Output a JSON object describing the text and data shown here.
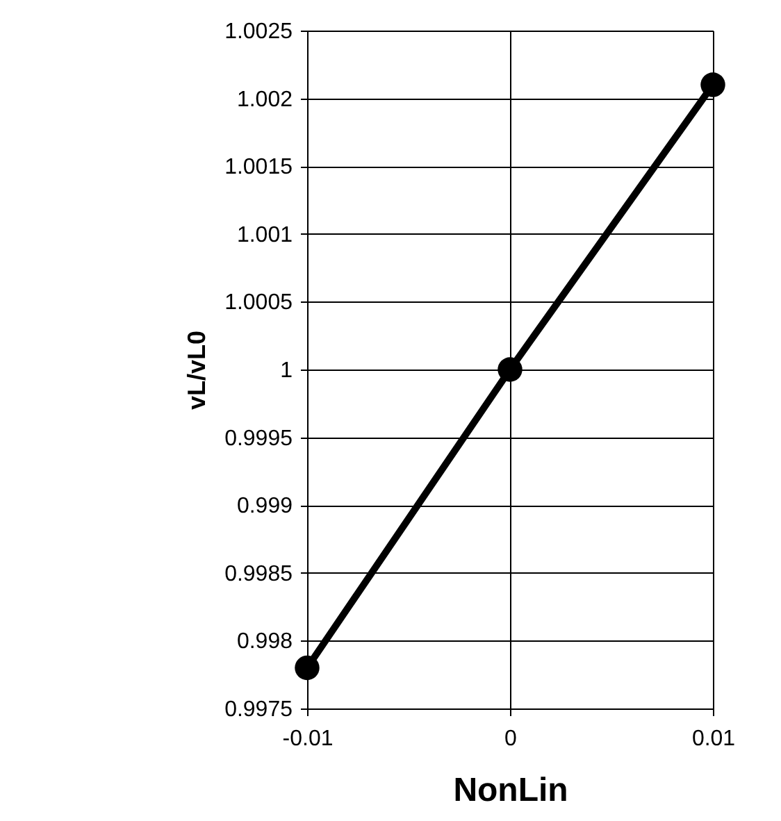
{
  "chart_data": {
    "type": "line",
    "xlabel": "NonLin",
    "ylabel": "vL/vL0",
    "x": [
      -0.01,
      0,
      0.01
    ],
    "series": [
      {
        "color": "#000000",
        "values": [
          0.9978,
          1.0,
          1.0021
        ]
      }
    ],
    "xlim": [
      -0.01,
      0.01
    ],
    "xticks": [
      -0.01,
      0,
      0.01
    ],
    "ylim": [
      0.9975,
      1.0025
    ],
    "yticks": [
      0.9975,
      0.998,
      0.9985,
      0.999,
      0.9995,
      1,
      1.0005,
      1.001,
      1.0015,
      1.002,
      1.0025
    ],
    "grid": true,
    "marker": "circle",
    "line_style": "solid",
    "legend": false
  }
}
